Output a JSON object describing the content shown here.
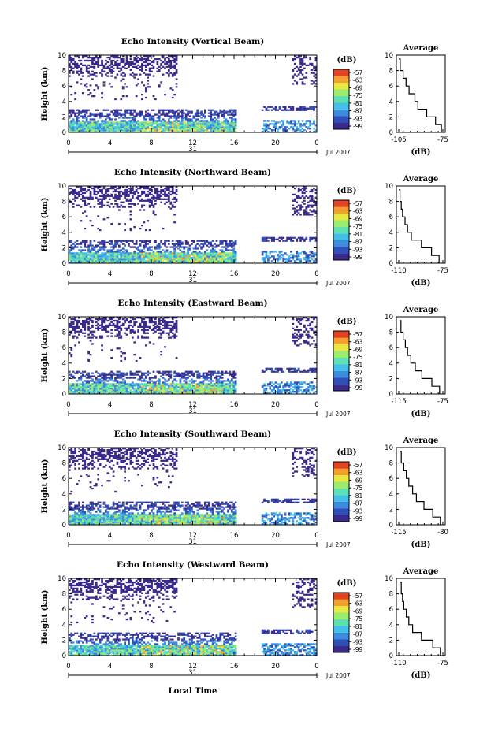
{
  "chart_data": [
    {
      "type": "heatmap",
      "title": "Echo Intensity (Vertical Beam)",
      "ylabel": "Height (km)",
      "ylim": [
        0,
        10
      ],
      "yticks": [
        "0",
        "2",
        "4",
        "6",
        "8",
        "10"
      ],
      "xlim": [
        0,
        24
      ],
      "xticks": [
        "0",
        "4",
        "8",
        "12",
        "16",
        "20",
        "0"
      ],
      "date_marker": "31",
      "date_label": "Jul 2007",
      "colorbar": {
        "label": "(dB)",
        "ticks": [
          "-57",
          "-63",
          "-69",
          "-75",
          "-81",
          "-87",
          "-93",
          "-99"
        ],
        "range": [
          -99,
          -57
        ]
      },
      "gap_hours": [
        16.2,
        18.5
      ],
      "average_profile": {
        "title": "Average",
        "xlabel": "(dB)",
        "xticks": [
          "-105",
          "-75"
        ],
        "yticks": [
          "0",
          "2",
          "4",
          "6",
          "8",
          "10"
        ],
        "x_db": [
          -76,
          -80,
          -86,
          -92,
          -94,
          -98,
          -100,
          -102,
          -104,
          -105
        ],
        "y_km": [
          0,
          1,
          2,
          3,
          4,
          5,
          6,
          7,
          8,
          9.5
        ]
      }
    },
    {
      "type": "heatmap",
      "title": "Echo Intensity (Northward Beam)",
      "ylabel": "Height (km)",
      "ylim": [
        0,
        10
      ],
      "yticks": [
        "0",
        "2",
        "4",
        "6",
        "8",
        "10"
      ],
      "xlim": [
        0,
        24
      ],
      "xticks": [
        "0",
        "4",
        "8",
        "12",
        "16",
        "20",
        "0"
      ],
      "date_marker": "31",
      "date_label": "Jul 2007",
      "colorbar": {
        "label": "(dB)",
        "ticks": [
          "-57",
          "-63",
          "-69",
          "-75",
          "-81",
          "-87",
          "-93",
          "-99"
        ],
        "range": [
          -99,
          -57
        ]
      },
      "gap_hours": [
        16.2,
        18.5
      ],
      "average_profile": {
        "title": "Average",
        "xlabel": "(dB)",
        "xticks": [
          "-110",
          "-75"
        ],
        "yticks": [
          "0",
          "2",
          "4",
          "6",
          "8",
          "10"
        ],
        "x_db": [
          -78,
          -84,
          -92,
          -100,
          -103,
          -105,
          -107,
          -108,
          -109,
          -110
        ],
        "y_km": [
          0,
          1,
          2,
          3,
          4,
          5,
          6,
          7,
          8,
          9.5
        ]
      }
    },
    {
      "type": "heatmap",
      "title": "Echo Intensity (Eastward Beam)",
      "ylabel": "Height (km)",
      "ylim": [
        0,
        10
      ],
      "yticks": [
        "0",
        "2",
        "4",
        "6",
        "8",
        "10"
      ],
      "xlim": [
        0,
        24
      ],
      "xticks": [
        "0",
        "4",
        "8",
        "12",
        "16",
        "20",
        "0"
      ],
      "date_marker": "31",
      "date_label": "Jul 2007",
      "colorbar": {
        "label": "(dB)",
        "ticks": [
          "-57",
          "-63",
          "-69",
          "-75",
          "-81",
          "-87",
          "-93",
          "-99"
        ],
        "range": [
          -99,
          -57
        ]
      },
      "gap_hours": [
        16.2,
        18.5
      ],
      "average_profile": {
        "title": "Average",
        "xlabel": "(dB)",
        "xticks": [
          "-115",
          "-75"
        ],
        "yticks": [
          "0",
          "2",
          "4",
          "6",
          "8",
          "10"
        ],
        "x_db": [
          -78,
          -85,
          -94,
          -100,
          -104,
          -107,
          -109,
          -111,
          -113,
          -114
        ],
        "y_km": [
          0,
          1,
          2,
          3,
          4,
          5,
          6,
          7,
          8,
          9.5
        ]
      }
    },
    {
      "type": "heatmap",
      "title": "Echo Intensity (Southward Beam)",
      "ylabel": "Height (km)",
      "ylim": [
        0,
        10
      ],
      "yticks": [
        "0",
        "2",
        "4",
        "6",
        "8",
        "10"
      ],
      "xlim": [
        0,
        24
      ],
      "xticks": [
        "0",
        "4",
        "8",
        "12",
        "16",
        "20",
        "0"
      ],
      "date_marker": "31",
      "date_label": "Jul 2007",
      "colorbar": {
        "label": "(dB)",
        "ticks": [
          "-57",
          "-63",
          "-69",
          "-75",
          "-81",
          "-87",
          "-93",
          "-99"
        ],
        "range": [
          -99,
          -57
        ]
      },
      "gap_hours": [
        16.2,
        18.5
      ],
      "average_profile": {
        "title": "Average",
        "xlabel": "(dB)",
        "xticks": [
          "-115",
          "-80"
        ],
        "yticks": [
          "0",
          "2",
          "4",
          "6",
          "8",
          "10"
        ],
        "x_db": [
          -82,
          -88,
          -95,
          -101,
          -104,
          -107,
          -109,
          -111,
          -113,
          -114
        ],
        "y_km": [
          0,
          1,
          2,
          3,
          4,
          5,
          6,
          7,
          8,
          9.5
        ]
      }
    },
    {
      "type": "heatmap",
      "title": "Echo Intensity (Westward Beam)",
      "ylabel": "Height (km)",
      "ylim": [
        0,
        10
      ],
      "yticks": [
        "0",
        "2",
        "4",
        "6",
        "8",
        "10"
      ],
      "xlim": [
        0,
        24
      ],
      "xticks": [
        "0",
        "4",
        "8",
        "12",
        "16",
        "20",
        "0"
      ],
      "date_marker": "31",
      "date_label": "Jul 2007",
      "colorbar": {
        "label": "(dB)",
        "ticks": [
          "-57",
          "-63",
          "-69",
          "-75",
          "-81",
          "-87",
          "-93",
          "-99"
        ],
        "range": [
          -99,
          -57
        ]
      },
      "gap_hours": [
        16.2,
        18.5
      ],
      "average_profile": {
        "title": "Average",
        "xlabel": "(dB)",
        "xticks": [
          "-110",
          "-75"
        ],
        "yticks": [
          "0",
          "2",
          "4",
          "6",
          "8",
          "10"
        ],
        "x_db": [
          -77,
          -83,
          -92,
          -99,
          -102,
          -104,
          -106,
          -107,
          -108,
          -109
        ],
        "y_km": [
          0,
          1,
          2,
          3,
          4,
          5,
          6,
          7,
          8,
          9.5
        ]
      }
    }
  ],
  "shared_xlabel": "Local Time",
  "colors": {
    "colormap": [
      "#3a2a8c",
      "#3050b8",
      "#3c8ce0",
      "#44c0e8",
      "#5ee0b0",
      "#9cec70",
      "#e8e844",
      "#f4a030",
      "#e04424"
    ]
  }
}
